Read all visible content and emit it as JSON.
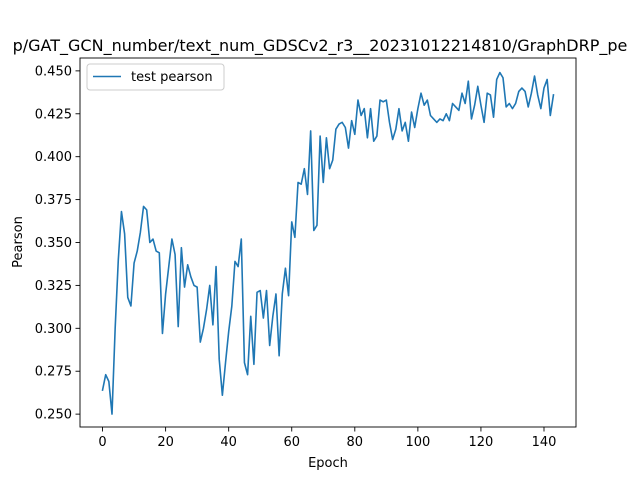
{
  "chart_data": {
    "type": "line",
    "title": "p/GAT_GCN_number/text_num_GDSCv2_r3__20231012214810/GraphDRP_pe",
    "xlabel": "Epoch",
    "ylabel": "Pearson",
    "xlim": [
      -7.15,
      150.15
    ],
    "ylim": [
      0.2425,
      0.4575
    ],
    "xticks": [
      0,
      20,
      40,
      60,
      80,
      100,
      120,
      140
    ],
    "yticks": [
      0.25,
      0.275,
      0.3,
      0.325,
      0.35,
      0.375,
      0.4,
      0.425,
      0.45
    ],
    "ytick_labels": [
      "0.250",
      "0.275",
      "0.300",
      "0.325",
      "0.350",
      "0.375",
      "0.400",
      "0.425",
      "0.450"
    ],
    "legend_position": "upper-left",
    "grid": false,
    "series": [
      {
        "name": "test pearson",
        "color": "#1f77b4",
        "x": [
          0,
          1,
          2,
          3,
          4,
          5,
          6,
          7,
          8,
          9,
          10,
          11,
          12,
          13,
          14,
          15,
          16,
          17,
          18,
          19,
          20,
          21,
          22,
          23,
          24,
          25,
          26,
          27,
          28,
          29,
          30,
          31,
          32,
          33,
          34,
          35,
          36,
          37,
          38,
          39,
          40,
          41,
          42,
          43,
          44,
          45,
          46,
          47,
          48,
          49,
          50,
          51,
          52,
          53,
          54,
          55,
          56,
          57,
          58,
          59,
          60,
          61,
          62,
          63,
          64,
          65,
          66,
          67,
          68,
          69,
          70,
          71,
          72,
          73,
          74,
          75,
          76,
          77,
          78,
          79,
          80,
          81,
          82,
          83,
          84,
          85,
          86,
          87,
          88,
          89,
          90,
          91,
          92,
          93,
          94,
          95,
          96,
          97,
          98,
          99,
          100,
          101,
          102,
          103,
          104,
          105,
          106,
          107,
          108,
          109,
          110,
          111,
          112,
          113,
          114,
          115,
          116,
          117,
          118,
          119,
          120,
          121,
          122,
          123,
          124,
          125,
          126,
          127,
          128,
          129,
          130,
          131,
          132,
          133,
          134,
          135,
          136,
          137,
          138,
          139,
          140,
          141,
          142,
          143
        ],
        "y": [
          0.264,
          0.273,
          0.269,
          0.25,
          0.3,
          0.34,
          0.368,
          0.355,
          0.318,
          0.313,
          0.338,
          0.345,
          0.356,
          0.371,
          0.369,
          0.35,
          0.352,
          0.345,
          0.344,
          0.297,
          0.32,
          0.336,
          0.352,
          0.343,
          0.301,
          0.347,
          0.324,
          0.337,
          0.33,
          0.325,
          0.324,
          0.292,
          0.3,
          0.311,
          0.325,
          0.302,
          0.336,
          0.282,
          0.261,
          0.28,
          0.298,
          0.313,
          0.339,
          0.336,
          0.352,
          0.28,
          0.273,
          0.307,
          0.279,
          0.321,
          0.322,
          0.306,
          0.322,
          0.29,
          0.307,
          0.32,
          0.284,
          0.32,
          0.335,
          0.319,
          0.362,
          0.353,
          0.385,
          0.384,
          0.393,
          0.378,
          0.415,
          0.357,
          0.36,
          0.412,
          0.385,
          0.411,
          0.393,
          0.398,
          0.416,
          0.419,
          0.42,
          0.417,
          0.405,
          0.421,
          0.413,
          0.433,
          0.424,
          0.428,
          0.411,
          0.428,
          0.409,
          0.412,
          0.433,
          0.432,
          0.433,
          0.42,
          0.41,
          0.416,
          0.428,
          0.415,
          0.42,
          0.409,
          0.426,
          0.417,
          0.428,
          0.437,
          0.43,
          0.433,
          0.424,
          0.422,
          0.42,
          0.422,
          0.421,
          0.425,
          0.421,
          0.431,
          0.429,
          0.427,
          0.437,
          0.431,
          0.444,
          0.422,
          0.43,
          0.441,
          0.43,
          0.42,
          0.437,
          0.436,
          0.423,
          0.445,
          0.449,
          0.446,
          0.429,
          0.431,
          0.428,
          0.431,
          0.438,
          0.44,
          0.438,
          0.429,
          0.437,
          0.447,
          0.436,
          0.428,
          0.44,
          0.445,
          0.424,
          0.436
        ]
      }
    ]
  }
}
